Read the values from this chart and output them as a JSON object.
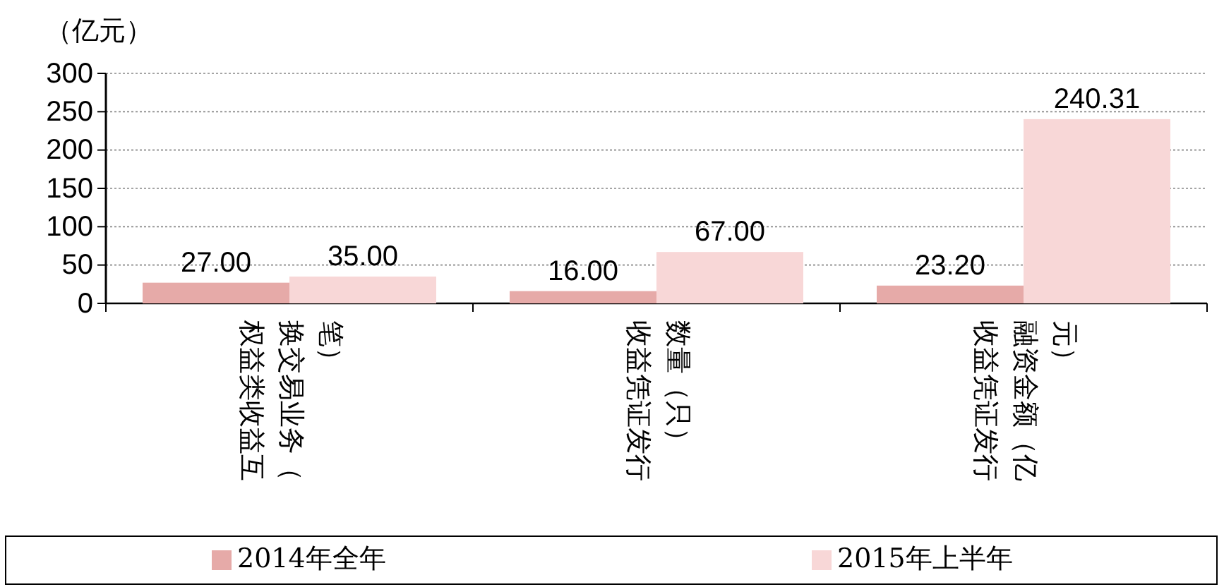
{
  "chart_data": {
    "type": "bar",
    "ylabel": "（亿元）",
    "categories": [
      "权益类收益互换交易业务（笔）",
      "收益凭证发行数量（只）",
      "收益凭证发行融资金额（亿元）"
    ],
    "series": [
      {
        "name": "2014年全年",
        "color": "#e6aaa8",
        "values": [
          27.0,
          16.0,
          23.2
        ],
        "value_labels": [
          "27.00",
          "16.00",
          "23.20"
        ]
      },
      {
        "name": "2015年上半年",
        "color": "#f8d7d7",
        "values": [
          35.0,
          67.0,
          240.31
        ],
        "value_labels": [
          "35.00",
          "67.00",
          "240.31"
        ]
      }
    ],
    "ylim": [
      0,
      300
    ],
    "yticks": [
      0,
      50,
      100,
      150,
      200,
      250,
      300
    ],
    "grid": "y",
    "legend": "bottom"
  }
}
